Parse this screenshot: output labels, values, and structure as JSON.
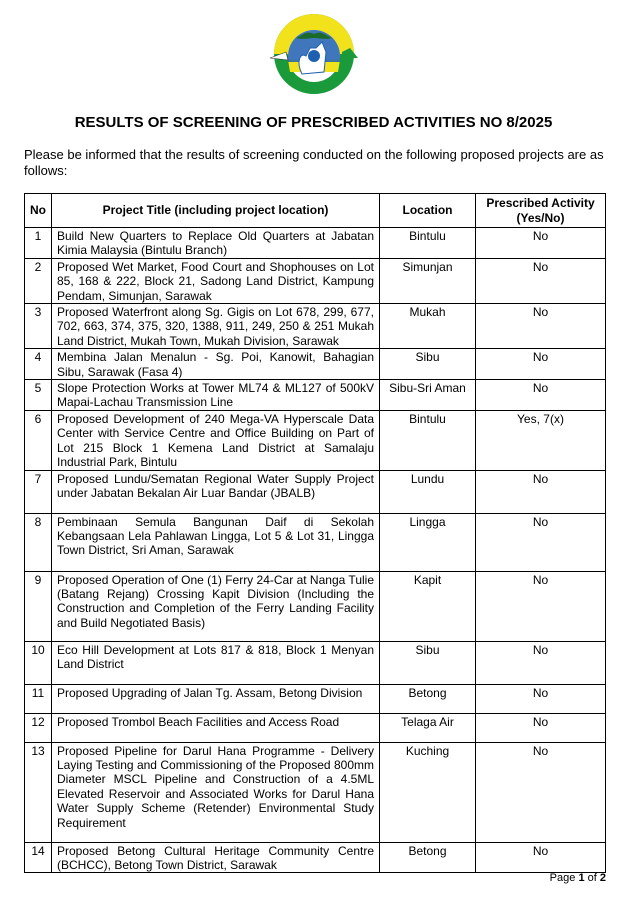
{
  "logo": {
    "top_text": "LEMBAGA SUMBER ASLI",
    "bottom_text": "DAN ALAM SEKITAR SARAWAK",
    "colors": {
      "yellow": "#f2e21b",
      "green": "#1a9a3a",
      "blue": "#1f5fb0"
    }
  },
  "title": "RESULTS OF SCREENING OF PRESCRIBED ACTIVITIES NO  8/2025",
  "intro": "Please be informed that the results of screening conducted on the following proposed projects are as follows:",
  "table": {
    "headers": [
      "No",
      "Project Title (including project location)",
      "Location",
      "Prescribed Activity (Yes/No)"
    ],
    "rows": [
      {
        "no": "1",
        "title": "Build New Quarters to Replace Old Quarters at Jabatan Kimia Malaysia (Bintulu Branch)",
        "location": "Bintulu",
        "prescribed": "No"
      },
      {
        "no": "2",
        "title": "Proposed Wet Market, Food Court and Shophouses on Lot 85, 168 & 222, Block 21, Sadong Land District, Kampung Pendam, Simunjan, Sarawak",
        "location": "Simunjan",
        "prescribed": "No"
      },
      {
        "no": "3",
        "title": "Proposed Waterfront along Sg. Gigis on Lot 678, 299, 677, 702, 663, 374, 375, 320, 1388, 911, 249, 250 & 251 Mukah Land District, Mukah Town, Mukah Division, Sarawak",
        "location": "Mukah",
        "prescribed": "No"
      },
      {
        "no": "4",
        "title": "Membina Jalan Menalun - Sg. Poi, Kanowit, Bahagian Sibu, Sarawak (Fasa 4)",
        "location": "Sibu",
        "prescribed": "No"
      },
      {
        "no": "5",
        "title": "Slope Protection Works at Tower ML74 & ML127 of 500kV Mapai-Lachau Transmission Line",
        "location": "Sibu-Sri Aman",
        "prescribed": "No"
      },
      {
        "no": "6",
        "title": "Proposed Development of 240 Mega-VA Hyperscale Data Center with Service Centre and Office Building on Part of Lot 215 Block 1 Kemena Land District at Samalaju Industrial Park, Bintulu",
        "location": "Bintulu",
        "prescribed": "Yes, 7(x)"
      },
      {
        "no": "7",
        "title": "Proposed Lundu/Sematan Regional Water Supply Project under Jabatan Bekalan Air Luar Bandar (JBALB)",
        "location": "Lundu",
        "prescribed": "No"
      },
      {
        "no": "8",
        "title": "Pembinaan Semula Bangunan Daif di Sekolah Kebangsaan Lela Pahlawan Lingga, Lot 5 & Lot 31, Lingga Town District, Sri Aman, Sarawak",
        "location": "Lingga",
        "prescribed": "No"
      },
      {
        "no": "9",
        "title": "Proposed Operation of One (1) Ferry 24-Car at Nanga Tulie (Batang Rejang) Crossing Kapit Division (Including the Construction and Completion of the Ferry Landing Facility and Build Negotiated Basis)",
        "location": "Kapit",
        "prescribed": "No"
      },
      {
        "no": "10",
        "title": "Eco Hill Development at Lots 817 & 818, Block 1 Menyan Land District",
        "location": "Sibu",
        "prescribed": "No"
      },
      {
        "no": "11",
        "title": "Proposed Upgrading of Jalan Tg. Assam, Betong Division",
        "location": "Betong",
        "prescribed": "No"
      },
      {
        "no": "12",
        "title": "Proposed Trombol Beach Facilities and Access Road",
        "location": "Telaga Air",
        "prescribed": "No"
      },
      {
        "no": "13",
        "title": "Proposed Pipeline for Darul Hana Programme - Delivery Laying Testing and Commissioning of the Proposed 800mm Diameter MSCL Pipeline and Construction of a 4.5ML Elevated Reservoir and Associated Works for Darul Hana Water Supply Scheme (Retender) Environmental Study Requirement",
        "location": "Kuching",
        "prescribed": "No"
      },
      {
        "no": "14",
        "title": "Proposed Betong Cultural Heritage Community Centre (BCHCC), Betong Town District, Sarawak",
        "location": "Betong",
        "prescribed": "No"
      }
    ]
  },
  "footer": {
    "page_word": "Page",
    "page": "1",
    "of_word": "of",
    "total": "2"
  }
}
